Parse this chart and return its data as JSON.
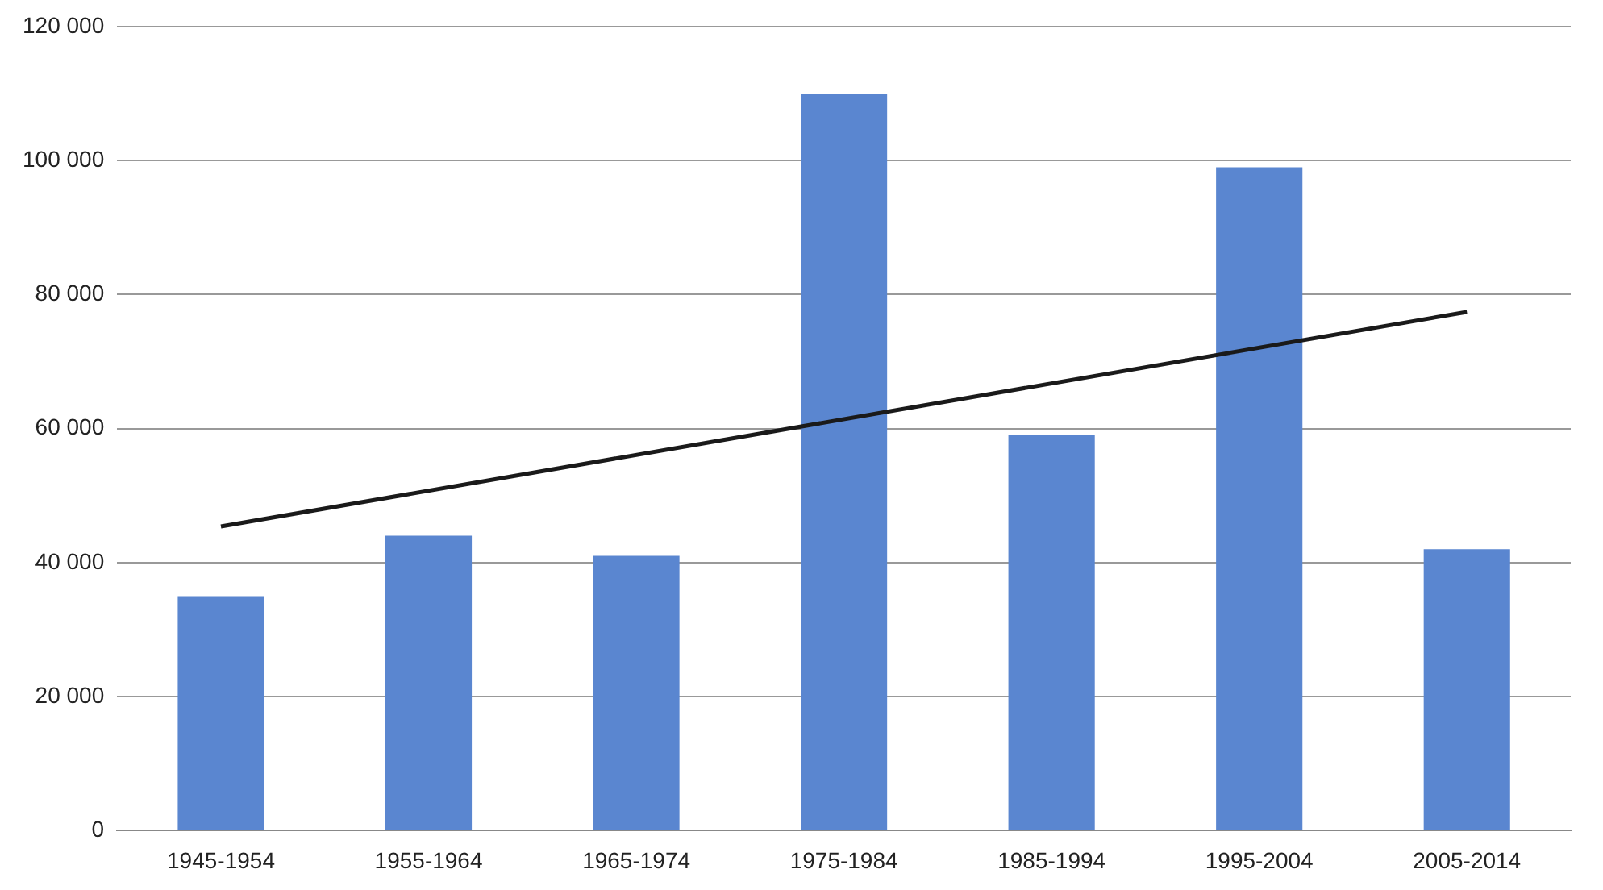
{
  "chart_data": {
    "type": "bar",
    "categories": [
      "1945-1954",
      "1955-1964",
      "1965-1974",
      "1975-1984",
      "1985-1994",
      "1995-2004",
      "2005-2014"
    ],
    "series": [
      {
        "color": "#5a86d0",
        "values": [
          35000,
          44000,
          41000,
          110000,
          59000,
          99000,
          42000
        ]
      },
      {
        "type": "line",
        "color": "#1a1a1a",
        "x": [
          "1945-1954",
          "2005-2014"
        ],
        "values": [
          45400,
          77400
        ]
      }
    ],
    "ylim": [
      0,
      120000
    ],
    "yticks": [
      {
        "value": 0,
        "label": "0"
      },
      {
        "value": 20000,
        "label": "20 000"
      },
      {
        "value": 40000,
        "label": "40 000"
      },
      {
        "value": 60000,
        "label": "60 000"
      },
      {
        "value": 80000,
        "label": "80 000"
      },
      {
        "value": 100000,
        "label": "100 000"
      },
      {
        "value": 120000,
        "label": "120 000"
      }
    ],
    "grid": "y",
    "legend": false,
    "marker": "none"
  }
}
